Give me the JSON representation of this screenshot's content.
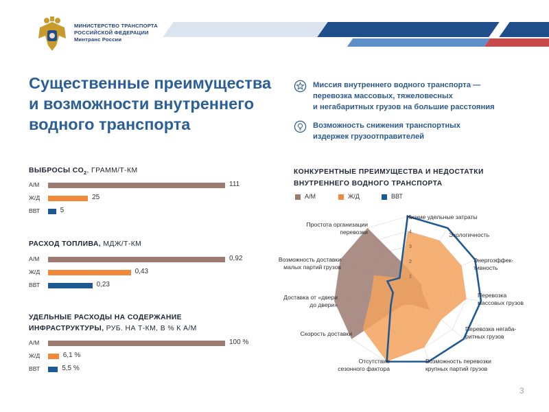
{
  "colors": {
    "am": "#9c7b72",
    "zd": "#f08a3a",
    "vvt": "#1d5a94",
    "title": "#2b5f97",
    "header_blue": "#1f4e8a"
  },
  "header": {
    "ministry_line1": "МИНИСТЕРСТВО ТРАНСПОРТА",
    "ministry_line2": "РОССИЙСКОЙ ФЕДЕРАЦИИ",
    "ministry_line3": "Минтранс России"
  },
  "title": {
    "line1": "Существенные преимущества",
    "line2": "и возможности внутреннего",
    "line3": "водного транспорта"
  },
  "points": [
    {
      "icon": "star-icon",
      "line1": "Миссия внутреннего водного транспорта —",
      "line2": "перевозка массовых, тяжеловесных",
      "line3": "и негабаритных грузов на большие расстояния"
    },
    {
      "icon": "lightbulb-icon",
      "line1": "Возможность снижения транспортных",
      "line2": "издержек грузоотправителей"
    }
  ],
  "emissions": {
    "heading": "ВЫБРОСЫ CO",
    "heading_sub": "2",
    "heading_unit": ", ГРАММ/Т-КМ",
    "rows": [
      {
        "label": "А/М",
        "value": 111,
        "display": "111"
      },
      {
        "label": "Ж/Д",
        "value": 25,
        "display": "25"
      },
      {
        "label": "ВВТ",
        "value": 5,
        "display": "5"
      }
    ]
  },
  "fuel": {
    "heading": "РАСХОД ТОПЛИВА,",
    "heading_unit": " МДЖ/Т-КМ",
    "rows": [
      {
        "label": "А/М",
        "value": 0.92,
        "display": "0,92"
      },
      {
        "label": "Ж/Д",
        "value": 0.43,
        "display": "0,43"
      },
      {
        "label": "ВВТ",
        "value": 0.23,
        "display": "0,23"
      }
    ]
  },
  "infra": {
    "heading_line1": "УДЕЛЬНЫЕ РАСХОДЫ НА СОДЕРЖАНИЕ",
    "heading_line2": "ИНФРАСТРУКТУРЫ,",
    "heading_unit": " РУБ. НА Т-КМ, В % К А/М",
    "rows": [
      {
        "label": "А/М",
        "value": 100,
        "display": "100 %"
      },
      {
        "label": "Ж/Д",
        "value": 6.1,
        "display": "6,1 %"
      },
      {
        "label": "ВВТ",
        "value": 5.5,
        "display": "5,5 %"
      }
    ]
  },
  "chart_data": {
    "type": "radar",
    "title_line1": "КОНКУРЕНТНЫЕ ПРЕИМУЩЕСТВА И НЕДОСТАТКИ",
    "title_line2": "ВНУТРЕННЕГО ВОДНОГО ТРАНСПОРТА",
    "axes": [
      {
        "l1": "Низкие удельные затраты",
        "l2": ""
      },
      {
        "l1": "Экологичность",
        "l2": ""
      },
      {
        "l1": "Энергоэффек-",
        "l2": "тивность"
      },
      {
        "l1": "Перевозка",
        "l2": "массовых грузов"
      },
      {
        "l1": "Перевозка негаба-",
        "l2": "ритных грузов"
      },
      {
        "l1": "Возможность перевозки",
        "l2": "крупных партий грузов"
      },
      {
        "l1": "Отсутствие",
        "l2": "сезонного фактора"
      },
      {
        "l1": "Скорость доставки",
        "l2": ""
      },
      {
        "l1": "Доставка от «двери",
        "l2": "до двери»"
      },
      {
        "l1": "Возможность доставки",
        "l2": "малых партий грузов"
      },
      {
        "l1": "Простота организации",
        "l2": "перевозки"
      }
    ],
    "ticks": [
      "1",
      "2",
      "3",
      "4",
      "5"
    ],
    "rmax": 5,
    "series": [
      {
        "name": "А/М",
        "values": [
          1.5,
          1.0,
          1.0,
          1.0,
          2.0,
          1.0,
          1.0,
          5.0,
          5.0,
          5.0,
          5.0
        ]
      },
      {
        "name": "Ж/Д",
        "values": [
          4.0,
          4.0,
          4.0,
          4.0,
          3.0,
          4.0,
          5.0,
          4.0,
          2.5,
          2.5,
          1.0
        ]
      },
      {
        "name": "ВВТ",
        "values": [
          5.0,
          5.0,
          5.0,
          5.0,
          5.0,
          5.0,
          5.0,
          1.5,
          1.0,
          1.5,
          1.0
        ]
      }
    ]
  },
  "page_number": "3"
}
